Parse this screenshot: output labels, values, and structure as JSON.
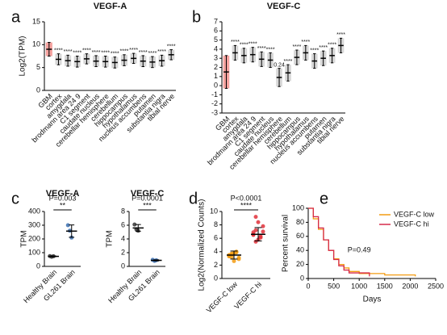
{
  "chart_data": [
    {
      "type": "dot",
      "panel": "a",
      "title": "VEGF-A",
      "y_label": "Log2(TPM)",
      "categories": [
        "GBM",
        "cortex",
        "amygdala",
        "brodmann area 24 9",
        "C1 segment",
        "caudate nucleus",
        "cerebellar hemisphere",
        "cerebellum",
        "hippocampus",
        "hypothalamus",
        "nucleus accumbens",
        "putamen",
        "substantia nigra",
        "tibial nerve"
      ],
      "values": [
        9,
        6.8,
        6.5,
        6.3,
        6.9,
        6.4,
        6.3,
        6.1,
        6.6,
        7.0,
        6.4,
        6.2,
        6.5,
        7.8
      ],
      "errors": [
        1.5,
        1.2,
        1.2,
        1.2,
        1.1,
        1.2,
        1.2,
        1.2,
        1.2,
        1.1,
        1.2,
        1.2,
        1.2,
        1.1
      ],
      "annotations": [
        null,
        "****",
        "****",
        "****",
        "****",
        "****",
        "****",
        "****",
        "****",
        "****",
        "****",
        "****",
        "****",
        "****"
      ],
      "colors": [
        "#e8302a",
        "#a8a8a8",
        "#a8a8a8",
        "#a8a8a8",
        "#a8a8a8",
        "#a8a8a8",
        "#a8a8a8",
        "#a8a8a8",
        "#a8a8a8",
        "#a8a8a8",
        "#a8a8a8",
        "#a8a8a8",
        "#a8a8a8",
        "#a8a8a8"
      ],
      "ylim": [
        0,
        15
      ],
      "yticks": [
        0,
        5,
        10,
        15
      ]
    },
    {
      "type": "dot",
      "panel": "b",
      "title": "VEGF-C",
      "categories": [
        "GBM",
        "cortex",
        "amygdala",
        "brodmann area 24 9",
        "C1 segment",
        "caudate nucleus",
        "cerebellar hemisphere",
        "cerebellum",
        "hippocampus",
        "hypothalamus",
        "nucleus accumbens",
        "putamen",
        "substantia nigra",
        "tibial nerve"
      ],
      "values": [
        1.5,
        3.6,
        3.3,
        3.4,
        2.9,
        2.8,
        0.9,
        1.4,
        3.1,
        3.6,
        2.7,
        3.0,
        3.3,
        4.4
      ],
      "errors": [
        1.8,
        0.8,
        0.8,
        0.8,
        0.8,
        0.8,
        1.0,
        0.9,
        0.8,
        0.8,
        0.8,
        0.8,
        0.8,
        0.8
      ],
      "annotations": [
        null,
        "****",
        "****",
        "****",
        "****",
        "****",
        "0.24",
        "****",
        "****",
        "****",
        "****",
        "****",
        "****",
        "****"
      ],
      "colors": [
        "#e8302a",
        "#a8a8a8",
        "#a8a8a8",
        "#a8a8a8",
        "#a8a8a8",
        "#a8a8a8",
        "#a8a8a8",
        "#a8a8a8",
        "#a8a8a8",
        "#a8a8a8",
        "#a8a8a8",
        "#a8a8a8",
        "#a8a8a8",
        "#a8a8a8"
      ],
      "ylim": [
        -3,
        7
      ],
      "yticks": [
        -3,
        -2,
        -1,
        0,
        1,
        2,
        3,
        4,
        5,
        6,
        7
      ]
    },
    {
      "type": "dot",
      "panel": "c",
      "title": "VEGF-A",
      "y_label": "TPM",
      "pvalue": "P=0.003",
      "stars": "**",
      "categories": [
        "Healthy Brain",
        "GL261 Brain"
      ],
      "points": [
        [
          75,
          70,
          74
        ],
        [
          300,
          260,
          210
        ]
      ],
      "values": [
        73,
        257
      ],
      "errors": [
        3,
        45
      ],
      "colors": [
        "#333333",
        "#3a6fb0"
      ],
      "ylim": [
        0,
        400
      ],
      "yticks": [
        0,
        100,
        200,
        300,
        400
      ]
    },
    {
      "type": "dot",
      "title": "VEGF-C",
      "y_label": "TPM",
      "pvalue": "P=0.0001",
      "stars": "***",
      "categories": [
        "Healthy Brain",
        "GL261 Brain"
      ],
      "points": [
        [
          6.1,
          5.4,
          5.2
        ],
        [
          0.95,
          0.8,
          0.9
        ]
      ],
      "values": [
        5.6,
        0.88
      ],
      "errors": [
        0.5,
        0.08
      ],
      "colors": [
        "#333333",
        "#3a6fb0"
      ],
      "ylim": [
        0,
        8
      ],
      "yticks": [
        0,
        2,
        4,
        6,
        8
      ]
    },
    {
      "type": "dot",
      "panel": "d",
      "y_label": "Log2(Normalized Counts)",
      "pvalue": "P<0.0001",
      "stars": "****",
      "categories": [
        "VEGF-C low",
        "VEGF-C hi"
      ],
      "points": [
        [
          3.5,
          3.2,
          3.8,
          4.0,
          2.9,
          3.3,
          3.6,
          2.6,
          3.9,
          3.1,
          3.4,
          3.7
        ],
        [
          6.5,
          7.2,
          5.8,
          6.1,
          7.8,
          6.9,
          5.5,
          8.4,
          6.3,
          7.0,
          6.6,
          9.2
        ]
      ],
      "values": [
        3.5,
        6.6
      ],
      "errors": [
        0.6,
        1.0
      ],
      "colors": [
        "#f39c12",
        "#e0303a"
      ],
      "ylim": [
        0,
        10
      ],
      "yticks": [
        0,
        2,
        4,
        6,
        8,
        10
      ]
    },
    {
      "type": "line",
      "panel": "e",
      "x_label": "Days",
      "y_label": "Percent survival",
      "annotation": "P=0.49",
      "legend": "top-right",
      "series": [
        {
          "name": "VEGF-C low",
          "color": "#f39c12",
          "x": [
            0,
            100,
            200,
            300,
            400,
            500,
            600,
            700,
            800,
            1000,
            1500,
            2100
          ],
          "values": [
            100,
            85,
            70,
            55,
            40,
            28,
            20,
            15,
            10,
            7,
            5,
            3
          ]
        },
        {
          "name": "VEGF-C hi",
          "color": "#d62a4a",
          "x": [
            0,
            100,
            200,
            300,
            400,
            500,
            600,
            700,
            800,
            1200
          ],
          "values": [
            100,
            88,
            72,
            55,
            40,
            27,
            18,
            12,
            8,
            3
          ]
        }
      ],
      "xlim": [
        0,
        2500
      ],
      "xticks": [
        0,
        500,
        1000,
        1500,
        2000,
        2500
      ],
      "ylim": [
        0,
        100
      ],
      "yticks": [
        0,
        20,
        40,
        60,
        80,
        100
      ]
    }
  ]
}
